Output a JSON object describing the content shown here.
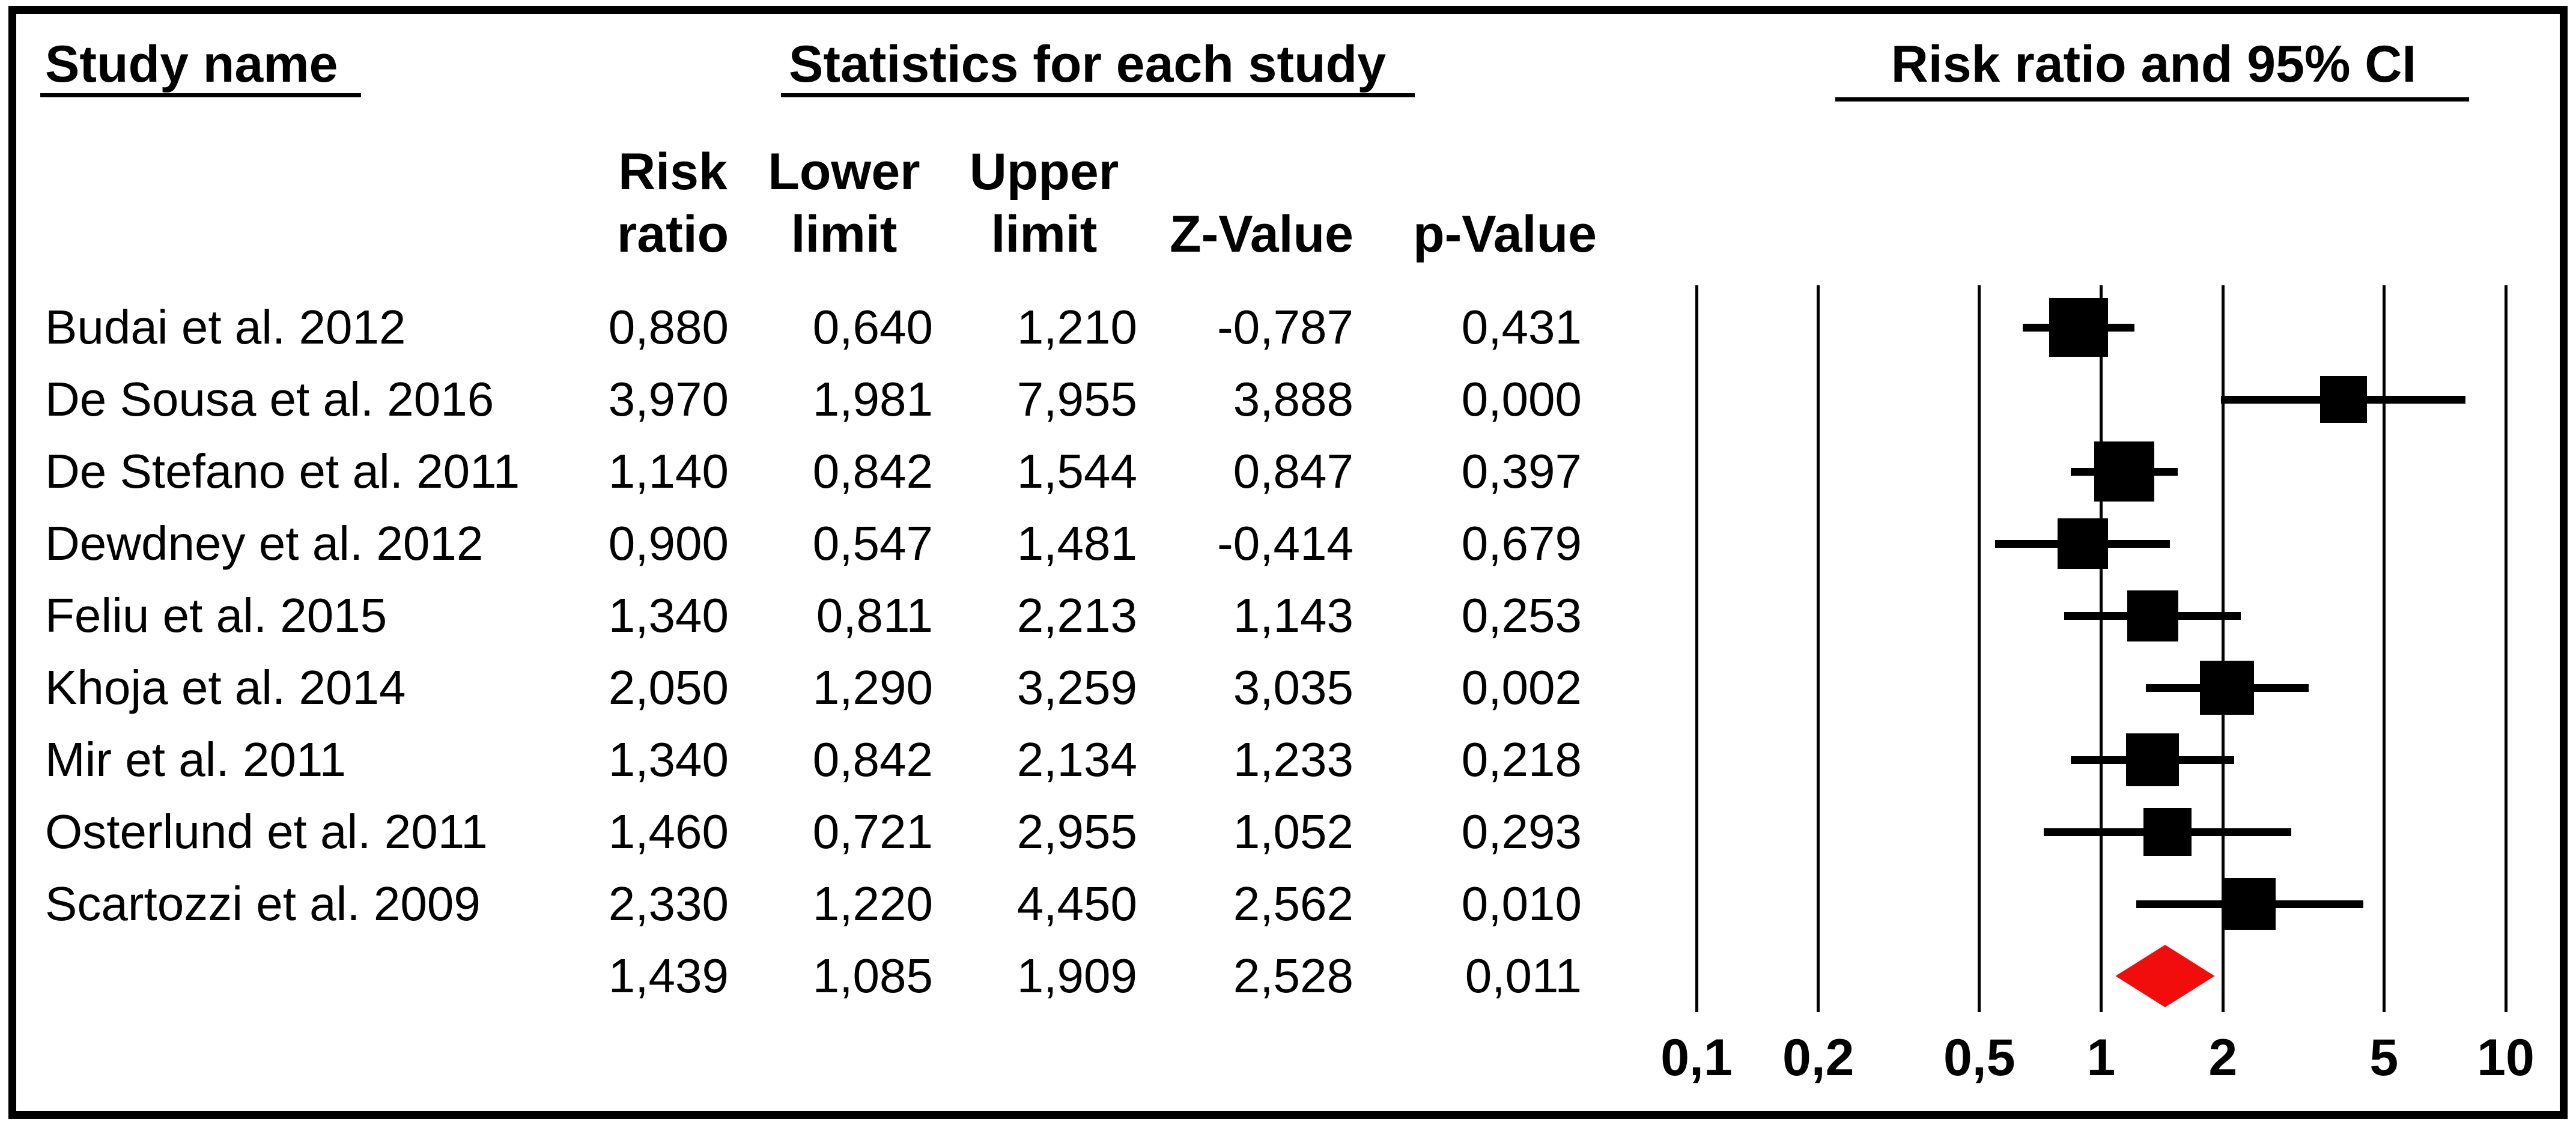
{
  "headers": {
    "study_name": "Study name",
    "statistics": "Statistics for each study",
    "plot": "Risk ratio and 95% CI"
  },
  "columns": [
    {
      "line1": "Risk",
      "line2": "ratio"
    },
    {
      "line1": "Lower",
      "line2": "limit"
    },
    {
      "line1": "Upper",
      "line2": "limit"
    },
    {
      "line1": "",
      "line2": "Z-Value"
    },
    {
      "line1": "",
      "line2": "p-Value"
    }
  ],
  "chart_data": {
    "type": "forest",
    "x_scale": "log",
    "xlim": [
      0.1,
      10
    ],
    "x_ticks": [
      {
        "label": "0,1",
        "value": 0.1
      },
      {
        "label": "0,2",
        "value": 0.2
      },
      {
        "label": "0,5",
        "value": 0.5
      },
      {
        "label": "1",
        "value": 1
      },
      {
        "label": "2",
        "value": 2
      },
      {
        "label": "5",
        "value": 5
      },
      {
        "label": "10",
        "value": 10
      }
    ],
    "studies": [
      {
        "name": "Budai et al. 2012",
        "risk_ratio": 0.88,
        "lower": 0.64,
        "upper": 1.21,
        "cells": [
          "0,880",
          "0,640",
          "1,210",
          "-0,787",
          "0,431"
        ],
        "marker_size": 98
      },
      {
        "name": "De Sousa et al. 2016",
        "risk_ratio": 3.97,
        "lower": 1.981,
        "upper": 7.955,
        "cells": [
          "3,970",
          "1,981",
          "7,955",
          "3,888",
          "0,000"
        ],
        "marker_size": 78
      },
      {
        "name": "De Stefano et al. 2011",
        "risk_ratio": 1.14,
        "lower": 0.842,
        "upper": 1.544,
        "cells": [
          "1,140",
          "0,842",
          "1,544",
          "0,847",
          "0,397"
        ],
        "marker_size": 100
      },
      {
        "name": "Dewdney et al. 2012",
        "risk_ratio": 0.9,
        "lower": 0.547,
        "upper": 1.481,
        "cells": [
          "0,900",
          "0,547",
          "1,481",
          "-0,414",
          "0,679"
        ],
        "marker_size": 84
      },
      {
        "name": "Feliu et al. 2015",
        "risk_ratio": 1.34,
        "lower": 0.811,
        "upper": 2.213,
        "cells": [
          "1,340",
          "0,811",
          "2,213",
          "1,143",
          "0,253"
        ],
        "marker_size": 85
      },
      {
        "name": "Khoja et al. 2014",
        "risk_ratio": 2.05,
        "lower": 1.29,
        "upper": 3.259,
        "cells": [
          "2,050",
          "1,290",
          "3,259",
          "3,035",
          "0,002"
        ],
        "marker_size": 90
      },
      {
        "name": "Mir et al. 2011",
        "risk_ratio": 1.34,
        "lower": 0.842,
        "upper": 2.134,
        "cells": [
          "1,340",
          "0,842",
          "2,134",
          "1,233",
          "0,218"
        ],
        "marker_size": 88
      },
      {
        "name": "Osterlund et al. 2011",
        "risk_ratio": 1.46,
        "lower": 0.721,
        "upper": 2.955,
        "cells": [
          "1,460",
          "0,721",
          "2,955",
          "1,052",
          "0,293"
        ],
        "marker_size": 80
      },
      {
        "name": "Scartozzi et al. 2009",
        "risk_ratio": 2.33,
        "lower": 1.22,
        "upper": 4.45,
        "cells": [
          "2,330",
          "1,220",
          "4,450",
          "2,562",
          "0,010"
        ],
        "marker_size": 86
      }
    ],
    "summary": {
      "name": "",
      "risk_ratio": 1.439,
      "lower": 1.085,
      "upper": 1.909,
      "cells": [
        "1,439",
        "1,085",
        "1,909",
        "2,528",
        "0,011"
      ],
      "diamond_color": "#f20d0d"
    },
    "marker_color": "#000000",
    "legend_position": "none",
    "grid": true
  }
}
